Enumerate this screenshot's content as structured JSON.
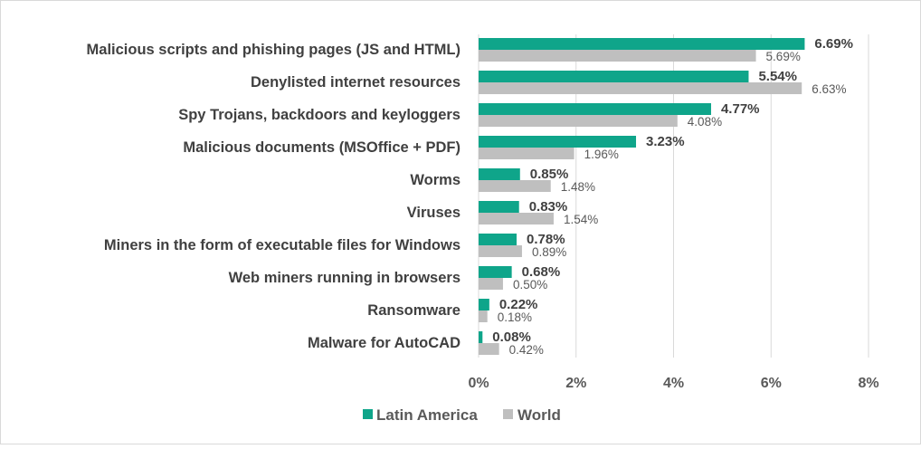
{
  "chart_data": {
    "type": "bar",
    "orientation": "horizontal",
    "categories": [
      "Malicious scripts and phishing pages (JS and HTML)",
      "Denylisted internet resources",
      "Spy Trojans, backdoors and keyloggers",
      "Malicious documents (MSOffice + PDF)",
      "Worms",
      "Viruses",
      "Miners in the form of executable files for Windows",
      "Web miners running in browsers",
      "Ransomware",
      "Malware for AutoCAD"
    ],
    "series": [
      {
        "name": "Latin America",
        "color": "#0fa58a",
        "values": [
          6.69,
          5.54,
          4.77,
          3.23,
          0.85,
          0.83,
          0.78,
          0.68,
          0.22,
          0.08
        ],
        "labels": [
          "6.69%",
          "5.54%",
          "4.77%",
          "3.23%",
          "0.85%",
          "0.83%",
          "0.78%",
          "0.68%",
          "0.22%",
          "0.08%"
        ]
      },
      {
        "name": "World",
        "color": "#bfbfbf",
        "values": [
          5.69,
          6.63,
          4.08,
          1.96,
          1.48,
          1.54,
          0.89,
          0.5,
          0.18,
          0.42
        ],
        "labels": [
          "5.69%",
          "6.63%",
          "4.08%",
          "1.96%",
          "1.48%",
          "1.54%",
          "0.89%",
          "0.50%",
          "0.18%",
          "0.42%"
        ]
      }
    ],
    "xlim": [
      0,
      8
    ],
    "xticks": [
      0,
      2,
      4,
      6,
      8
    ],
    "xtick_labels": [
      "0%",
      "2%",
      "4%",
      "6%",
      "8%"
    ],
    "grid": true,
    "legend_position": "bottom"
  }
}
